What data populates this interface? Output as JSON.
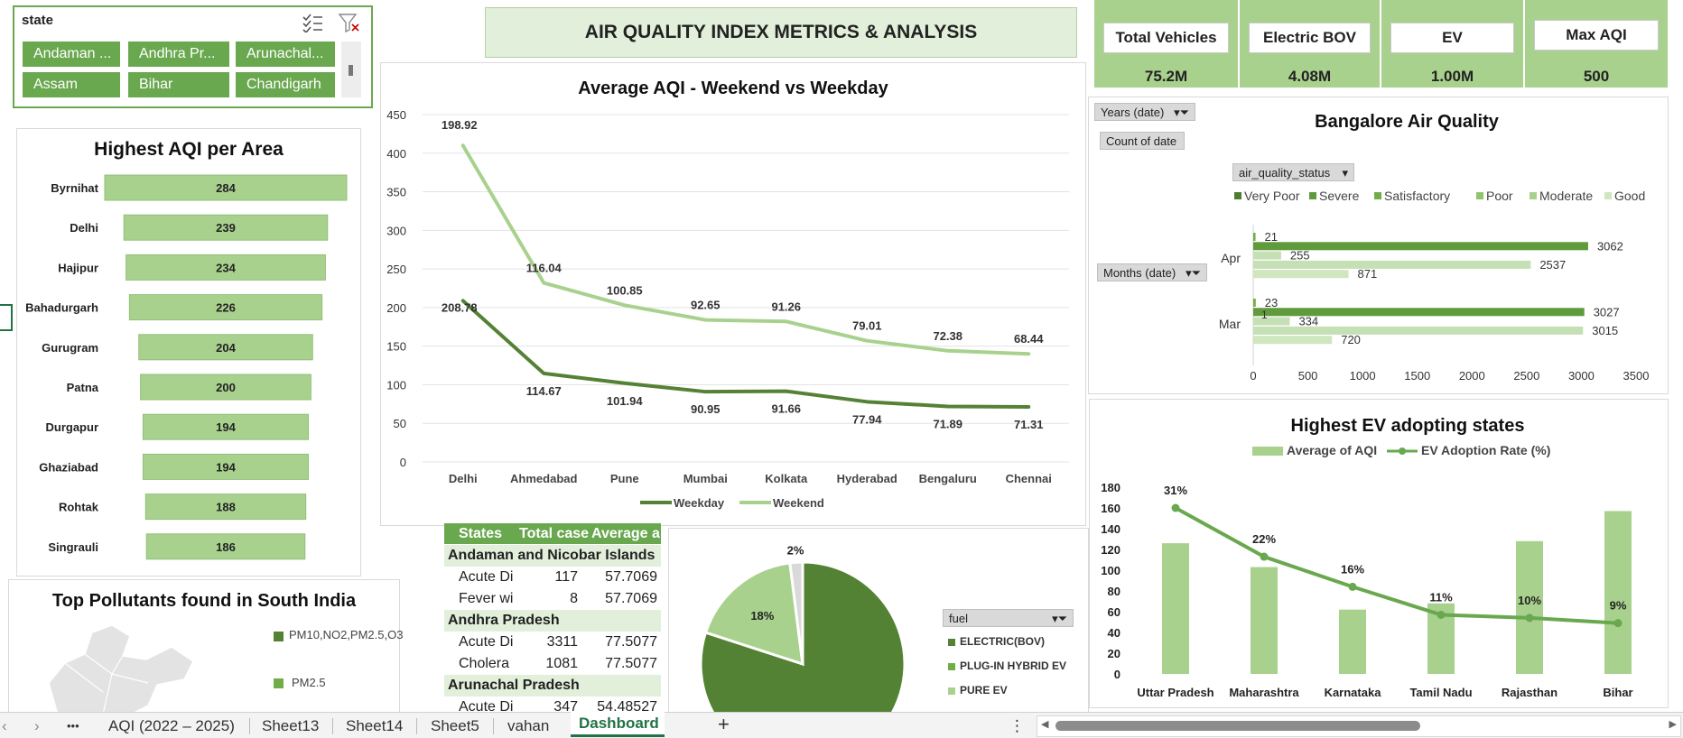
{
  "slicer": {
    "title": "state",
    "items": [
      "Andaman ...",
      "Andhra Pr...",
      "Arunachal...",
      "Assam",
      "Bihar",
      "Chandigarh"
    ],
    "multiselect_icon": "multiselect-icon",
    "clear_filter_icon": "clear-filter-icon"
  },
  "dashboard": {
    "title": "AIR QUALITY INDEX METRICS & ANALYSIS"
  },
  "kpis": [
    {
      "label": "Total Vehicles",
      "value": "75.2M"
    },
    {
      "label": "Electric BOV",
      "value": "4.08M"
    },
    {
      "label": "EV",
      "value": "1.00M"
    },
    {
      "label": "Max AQI",
      "value": "500"
    }
  ],
  "colors": {
    "dark_green": "#548235",
    "mid_green": "#70ad47",
    "light_green": "#a9d18e",
    "pale_green": "#c5e0b4",
    "header_green": "#6aa84f"
  },
  "highest_aqi": {
    "chart_data": {
      "type": "bar",
      "title": "Highest AQI per Area",
      "categories": [
        "Byrnihat",
        "Delhi",
        "Hajipur",
        "Bahadurgarh",
        "Gurugram",
        "Patna",
        "Durgapur",
        "Ghaziabad",
        "Rohtak",
        "Singrauli"
      ],
      "values": [
        284,
        239,
        234,
        226,
        204,
        200,
        194,
        194,
        188,
        186
      ],
      "labels": [
        "284",
        "239",
        "234",
        "226",
        "204",
        "200",
        "194",
        "194",
        "188",
        "186"
      ]
    }
  },
  "weekend_weekday": {
    "chart_data": {
      "type": "line",
      "title": "Average AQI - Weekend vs Weekday",
      "categories": [
        "Delhi",
        "Ahmedabad",
        "Pune",
        "Mumbai",
        "Kolkata",
        "Hyderabad",
        "Bengaluru",
        "Chennai"
      ],
      "ylim": [
        0,
        450
      ],
      "yticks": [
        "0",
        "50",
        "100",
        "150",
        "200",
        "250",
        "300",
        "350",
        "400",
        "450"
      ],
      "series": [
        {
          "name": "Weekday",
          "values": [
            208.78,
            114.67,
            101.94,
            90.95,
            91.66,
            77.94,
            71.89,
            71.31
          ],
          "labels": [
            "208.78",
            "114.67",
            "101.94",
            "90.95",
            "91.66",
            "77.94",
            "71.89",
            "71.31"
          ]
        },
        {
          "name": "Weekend",
          "values": [
            410,
            232,
            203,
            184,
            182,
            157,
            144,
            140
          ],
          "labels": [
            "198.92",
            "116.04",
            "100.85",
            "92.65",
            "91.26",
            "79.01",
            "72.38",
            "68.44"
          ]
        }
      ]
    }
  },
  "bangalore": {
    "filters": {
      "years": "Years (date)",
      "count": "Count of date",
      "status": "air_quality_status",
      "months": "Months (date)"
    },
    "chart_data": {
      "type": "bar",
      "title": "Bangalore Air Quality",
      "legend": [
        "Very Poor",
        "Severe",
        "Satisfactory",
        "Poor",
        "Moderate",
        "Good"
      ],
      "groups": [
        {
          "name": "Apr",
          "bars": [
            21,
            3062,
            255,
            2537,
            871
          ],
          "labels": [
            "21",
            "3062",
            "255",
            "2537",
            "871"
          ]
        },
        {
          "name": "Mar",
          "bars": [
            23,
            3027,
            334,
            3015,
            720
          ],
          "labels": [
            "23",
            "3027",
            "334",
            "3015",
            "720"
          ],
          "extra_label": "1"
        }
      ],
      "xlim": [
        0,
        3500
      ],
      "xticks": [
        "0",
        "500",
        "1000",
        "1500",
        "2000",
        "2500",
        "3000",
        "3500"
      ]
    }
  },
  "ev_states": {
    "chart_data": {
      "type": "bar",
      "title": "Highest EV adopting states",
      "categories": [
        "Uttar Pradesh",
        "Maharashtra",
        "Karnataka",
        "Tamil Nadu",
        "Rajasthan",
        "Bihar"
      ],
      "series": [
        {
          "name": "Average of AQI",
          "values": [
            126,
            103,
            62,
            68,
            128,
            157
          ]
        },
        {
          "name": "EV Adoption Rate (%)",
          "values": [
            160,
            113,
            84,
            57,
            54,
            49
          ],
          "labels": [
            "31%",
            "22%",
            "16%",
            "11%",
            "10%",
            "9%"
          ]
        }
      ],
      "ylim": [
        0,
        180
      ],
      "yticks": [
        "0",
        "20",
        "40",
        "60",
        "80",
        "100",
        "120",
        "140",
        "160",
        "180"
      ]
    }
  },
  "pollutants": {
    "title": "Top Pollutants found in South India",
    "legend": [
      "PM10,NO2,PM2.5,O3",
      "PM2.5"
    ]
  },
  "disease_table": {
    "headers": [
      "States",
      "Total case",
      "Average a"
    ],
    "rows": [
      {
        "group": "Andaman and Nicobar Islands"
      },
      {
        "cells": [
          "Acute Di",
          "117",
          "57.7069"
        ]
      },
      {
        "cells": [
          "Fever wi",
          "8",
          "57.7069"
        ]
      },
      {
        "group": "Andhra Pradesh"
      },
      {
        "cells": [
          "Acute Di",
          "3311",
          "77.5077"
        ]
      },
      {
        "cells": [
          "Cholera",
          "1081",
          "77.5077"
        ]
      },
      {
        "group": "Arunachal Pradesh"
      },
      {
        "cells": [
          "Acute Di",
          "347",
          "54.48527"
        ]
      }
    ]
  },
  "fuel": {
    "filter_label": "fuel",
    "legend": [
      "ELECTRIC(BOV)",
      "PLUG-IN HYBRID EV",
      "PURE EV"
    ],
    "chart_data": {
      "type": "pie",
      "labels": [
        "ELECTRIC(BOV)",
        "PLUG-IN HYBRID EV",
        "PURE EV"
      ],
      "values": [
        80,
        18,
        2
      ],
      "data_labels": [
        "",
        "18%",
        "2%"
      ]
    }
  },
  "tabs": {
    "nav_prev": "‹",
    "nav_next": "›",
    "more": "•••",
    "items": [
      "AQI (2022 – 2025)",
      "Sheet13",
      "Sheet14",
      "Sheet5",
      "vahan",
      "Dashboard"
    ],
    "active": "Dashboard",
    "add": "+",
    "menu": "⋮"
  }
}
